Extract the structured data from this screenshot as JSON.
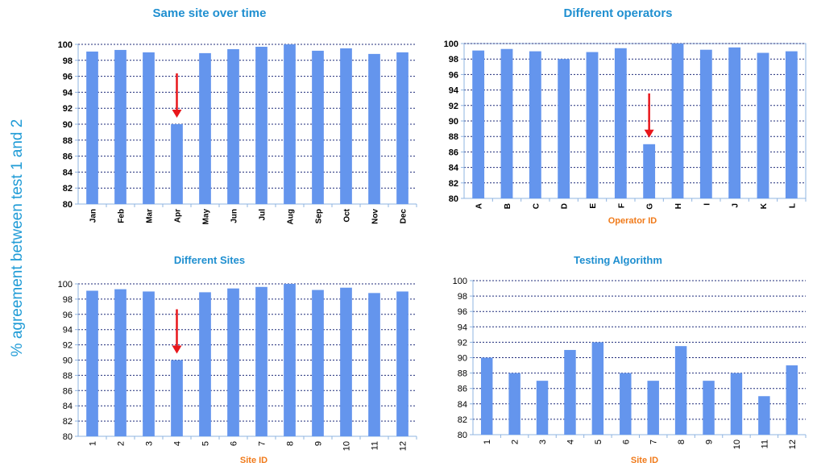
{
  "figure": {
    "ylabel": "% agreement between test 1 and 2"
  },
  "colors": {
    "bar": "#6495ed",
    "grid": "#1f2b7a",
    "axis": "#8fb4e0",
    "arrow": "#e8161b",
    "title": "#1f8fd0",
    "xtitle": "#f07a1a"
  },
  "chart_data": [
    {
      "type": "bar",
      "title": "Same site over time",
      "xlabel": "",
      "ylabel": "% agreement between test 1 and 2",
      "categories": [
        "Jan",
        "Feb",
        "Mar",
        "Apr",
        "May",
        "Jun",
        "Jul",
        "Aug",
        "Sep",
        "Oct",
        "Nov",
        "Dec"
      ],
      "values": [
        99.1,
        99.3,
        99.0,
        90.0,
        98.9,
        99.4,
        99.7,
        100.0,
        99.2,
        99.5,
        98.8,
        99.0
      ],
      "ylim": [
        80,
        100
      ],
      "yticks": [
        80,
        82,
        84,
        86,
        88,
        90,
        92,
        94,
        96,
        98,
        100
      ],
      "grid": true,
      "highlight_index": 3
    },
    {
      "type": "bar",
      "title": "Different operators",
      "xlabel": "Operator ID",
      "ylabel": "% agreement between test 1 and 2",
      "categories": [
        "A",
        "B",
        "C",
        "D",
        "E",
        "F",
        "G",
        "H",
        "I",
        "J",
        "K",
        "L"
      ],
      "values": [
        99.1,
        99.3,
        99.0,
        98.0,
        98.9,
        99.4,
        87.0,
        100.0,
        99.2,
        99.5,
        98.8,
        99.0
      ],
      "ylim": [
        80,
        100
      ],
      "yticks": [
        80,
        82,
        84,
        86,
        88,
        90,
        92,
        94,
        96,
        98,
        100
      ],
      "grid": true,
      "highlight_index": 6
    },
    {
      "type": "bar",
      "title": "Different Sites",
      "xlabel": "Site ID",
      "ylabel": "% agreement between test 1 and 2",
      "categories": [
        "1",
        "2",
        "3",
        "4",
        "5",
        "6",
        "7",
        "8",
        "9",
        "10",
        "11",
        "12"
      ],
      "values": [
        99.1,
        99.3,
        99.0,
        90.0,
        98.9,
        99.4,
        99.6,
        100.0,
        99.2,
        99.5,
        98.8,
        99.0
      ],
      "ylim": [
        80,
        100
      ],
      "yticks": [
        80,
        82,
        84,
        86,
        88,
        90,
        92,
        94,
        96,
        98,
        100
      ],
      "grid": true,
      "highlight_index": 3
    },
    {
      "type": "bar",
      "title": "Testing Algorithm",
      "xlabel": "Site ID",
      "ylabel": "% agreement between test 1 and 2",
      "categories": [
        "1",
        "2",
        "3",
        "4",
        "5",
        "6",
        "7",
        "8",
        "9",
        "10",
        "11",
        "12"
      ],
      "values": [
        90.0,
        88.0,
        87.0,
        91.0,
        92.0,
        88.0,
        87.0,
        91.5,
        87.0,
        88.0,
        85.0,
        89.0
      ],
      "ylim": [
        80,
        100
      ],
      "yticks": [
        80,
        82,
        84,
        86,
        88,
        90,
        92,
        94,
        96,
        98,
        100
      ],
      "grid": true,
      "highlight_index": null
    }
  ]
}
